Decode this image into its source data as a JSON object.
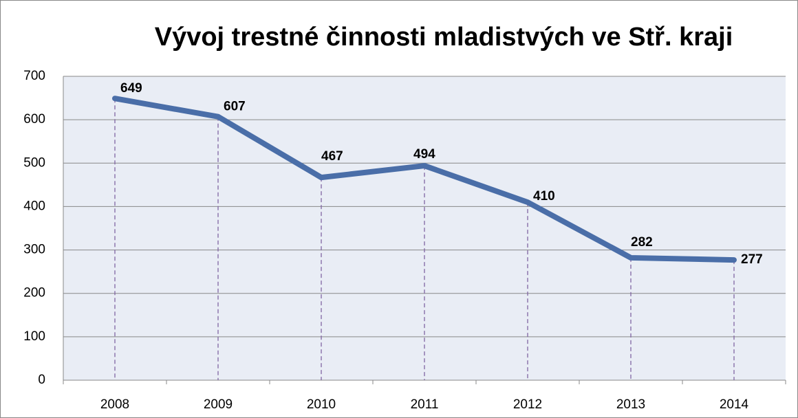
{
  "chart_data": {
    "type": "line",
    "title": "Vývoj trestné činnosti mladistvých ve Stř. kraji",
    "categories": [
      "2008",
      "2009",
      "2010",
      "2011",
      "2012",
      "2013",
      "2014"
    ],
    "series": [
      {
        "color": "#4a6ea8",
        "values": [
          649,
          607,
          467,
          494,
          410,
          282,
          277
        ]
      }
    ],
    "ylim": [
      0,
      700
    ],
    "yticks": [
      0,
      100,
      200,
      300,
      400,
      500,
      600,
      700
    ],
    "grid": true,
    "drop_lines": true,
    "drop_line_color": "#8064a2",
    "plot_background": "#e9edf5"
  }
}
